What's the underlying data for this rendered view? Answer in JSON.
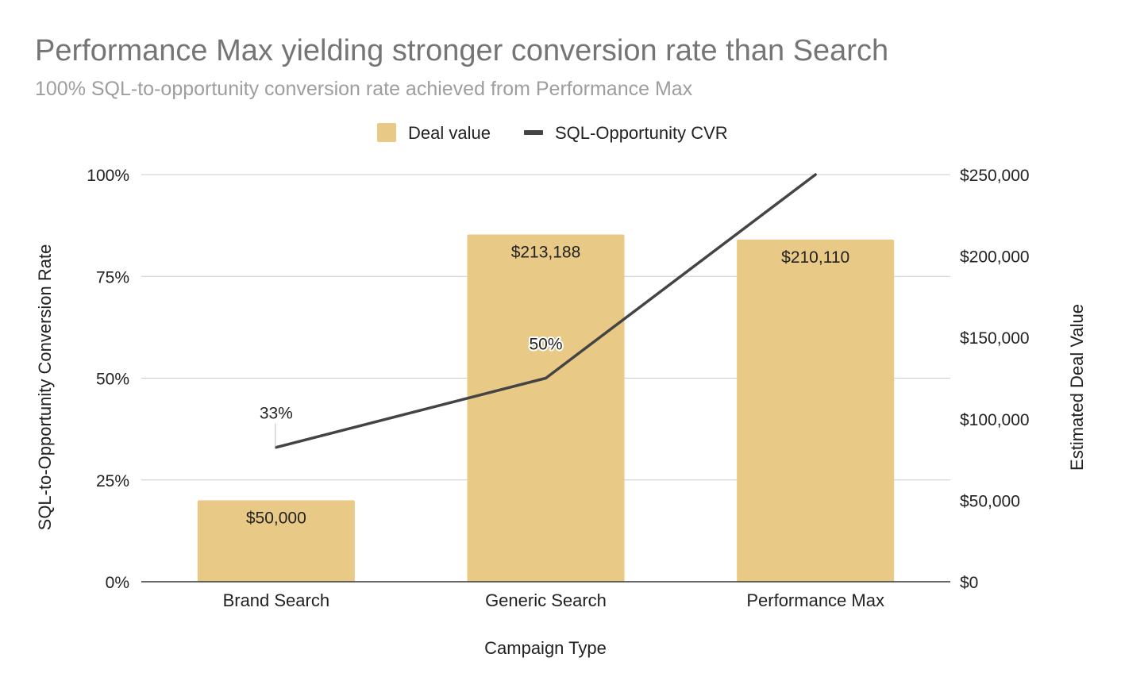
{
  "chart_data": {
    "type": "bar",
    "title": "Performance Max yielding stronger conversion rate than Search",
    "subtitle": "100% SQL-to-opportunity conversion rate achieved from Performance Max",
    "xlabel": "Campaign Type",
    "ylabel_left": "SQL-to-Opportunity Conversion Rate",
    "ylabel_right": "Estimated Deal Value",
    "categories": [
      "Brand Search",
      "Generic Search",
      "Performance Max"
    ],
    "series": [
      {
        "name": "Deal value",
        "type": "bar",
        "axis": "right",
        "values": [
          50000,
          213188,
          210110
        ],
        "data_labels": [
          "$50,000",
          "$213,188",
          "$210,110"
        ],
        "color": "#e8c986"
      },
      {
        "name": "SQL-Opportunity CVR",
        "type": "line",
        "axis": "left",
        "values": [
          33,
          50,
          100
        ],
        "data_labels": [
          "33%",
          "50%",
          ""
        ],
        "color": "#444444"
      }
    ],
    "left_axis": {
      "ylim": [
        0,
        100
      ],
      "ticks": [
        0,
        25,
        50,
        75,
        100
      ],
      "tick_labels": [
        "0%",
        "25%",
        "50%",
        "75%",
        "100%"
      ]
    },
    "right_axis": {
      "ylim": [
        0,
        250000
      ],
      "ticks": [
        0,
        50000,
        100000,
        150000,
        200000,
        250000
      ],
      "tick_labels": [
        "$0",
        "$50,000",
        "$100,000",
        "$150,000",
        "$200,000",
        "$250,000"
      ]
    },
    "legend_position": "top",
    "grid": true,
    "colors": {
      "title": "#757575",
      "subtitle": "#9e9e9e",
      "grid": "#cccccc",
      "axis": "#333333",
      "text": "#222222"
    }
  }
}
